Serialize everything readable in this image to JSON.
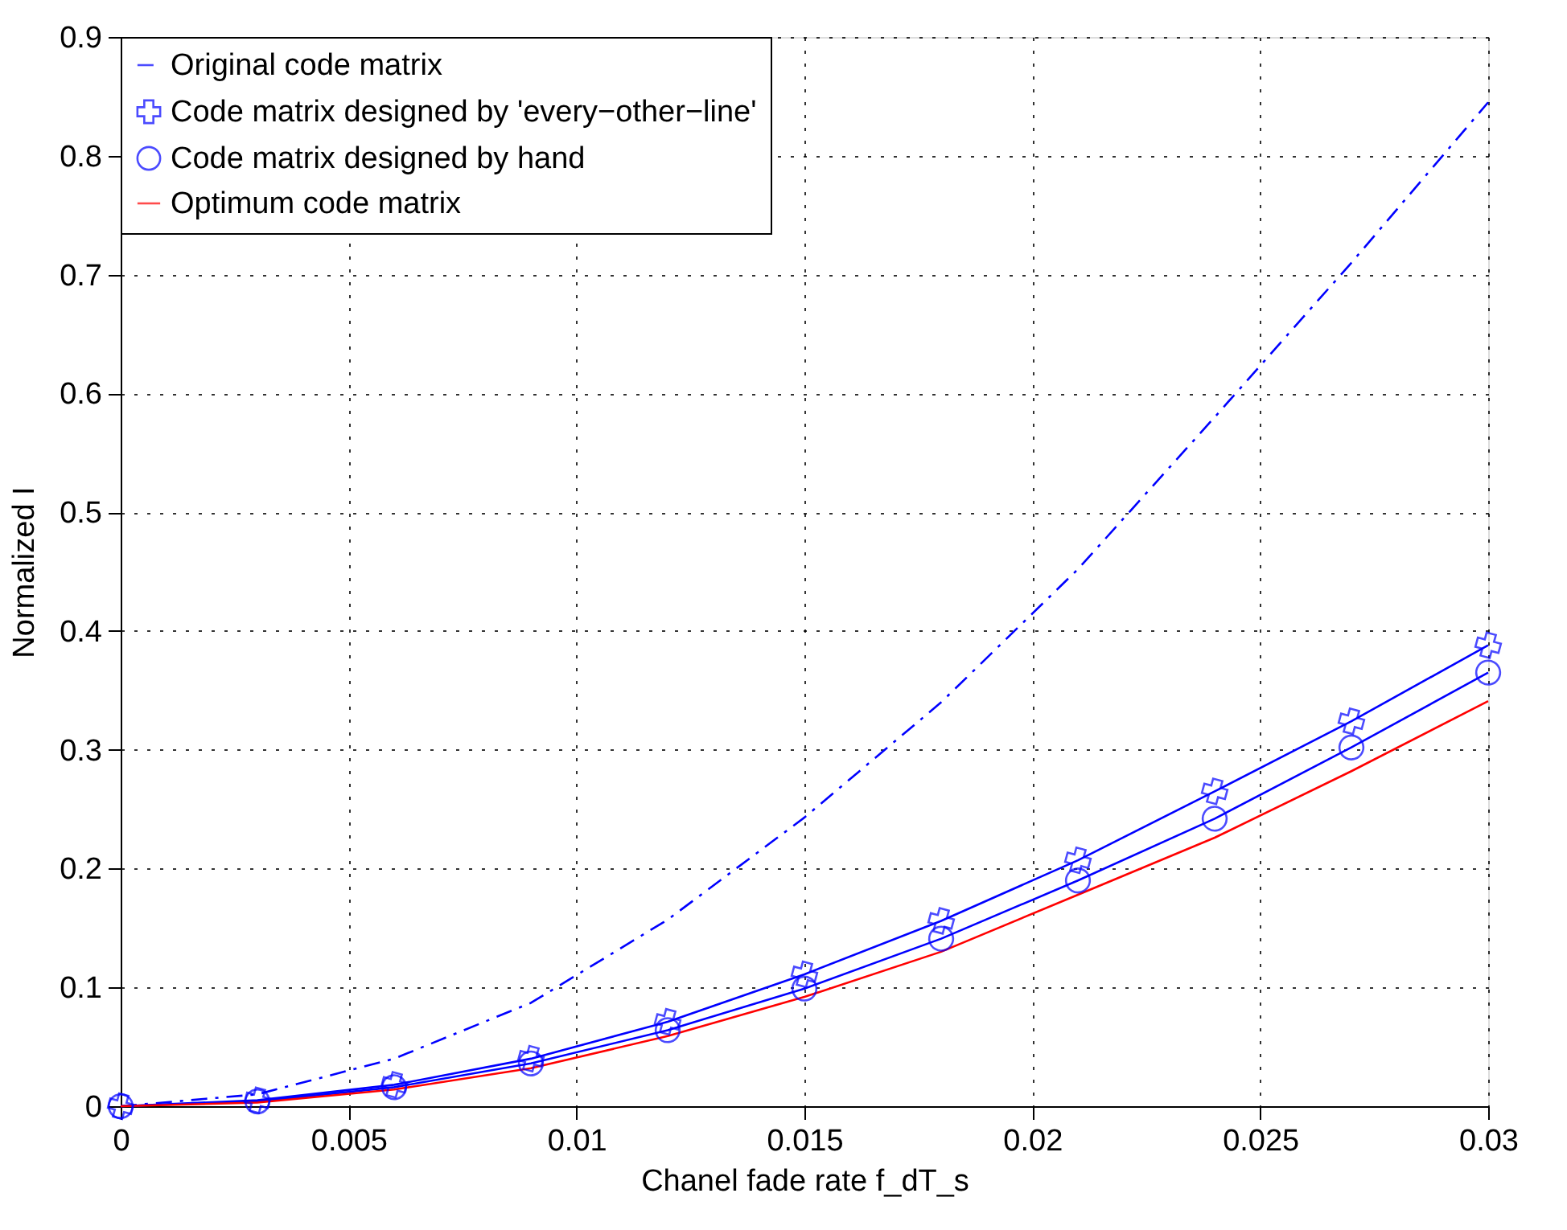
{
  "chart_data": {
    "type": "line",
    "xlabel": "Chanel fade rate f_dT_s",
    "ylabel": "Normalized I",
    "x": [
      0,
      0.003,
      0.006,
      0.009,
      0.012,
      0.015,
      0.018,
      0.021,
      0.024,
      0.027,
      0.03
    ],
    "series": [
      {
        "name": "Original code matrix",
        "color": "#0000ff",
        "line_style": "dashdot",
        "marker": "none",
        "values": [
          0,
          0.01,
          0.04,
          0.087,
          0.157,
          0.243,
          0.34,
          0.452,
          0.58,
          0.71,
          0.845
        ]
      },
      {
        "name": "Code matrix designed by 'every−other−line'",
        "color": "#0000ff",
        "line_style": "solid",
        "marker": "cross",
        "values": [
          0,
          0.005,
          0.018,
          0.04,
          0.071,
          0.111,
          0.156,
          0.207,
          0.265,
          0.324,
          0.388
        ]
      },
      {
        "name": "Code matrix designed by hand",
        "color": "#0000ff",
        "line_style": "solid",
        "marker": "circle",
        "values": [
          0,
          0.004,
          0.016,
          0.036,
          0.064,
          0.099,
          0.141,
          0.19,
          0.242,
          0.302,
          0.365
        ]
      },
      {
        "name": "Optimum code matrix",
        "color": "#ff0000",
        "line_style": "solid",
        "marker": "none",
        "values": [
          0,
          0.003,
          0.014,
          0.032,
          0.059,
          0.092,
          0.13,
          0.178,
          0.226,
          0.282,
          0.341
        ]
      }
    ],
    "xlim": [
      0,
      0.03
    ],
    "xticks": [
      0,
      0.005,
      0.01,
      0.015,
      0.02,
      0.025,
      {
        "value": 0.03,
        "label": "0.03"
      }
    ],
    "ylim": [
      0,
      0.9
    ],
    "yticks": [
      0,
      0.1,
      0.2,
      0.3,
      0.4,
      0.5,
      0.6,
      0.7,
      0.8,
      0.9
    ],
    "grid": true,
    "legend": "top left"
  }
}
